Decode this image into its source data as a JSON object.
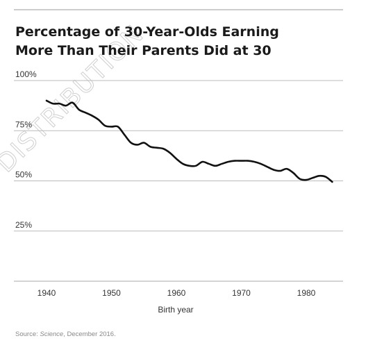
{
  "chart_data": {
    "type": "line",
    "title": "Percentage of 30-Year-Olds Earning More Than Their Parents Did at 30",
    "title_lines": [
      "Percentage of 30-Year-Olds Earning",
      "More Than Their Parents Did at 30"
    ],
    "xlabel": "Birth year",
    "ylabel": "",
    "x_ticks": [
      1940,
      1950,
      1960,
      1970,
      1980
    ],
    "y_ticks": [
      100,
      75,
      50,
      25
    ],
    "y_tick_labels": [
      "100%",
      "75%",
      "50%",
      "25%"
    ],
    "xlim": [
      1940,
      1985
    ],
    "ylim": [
      0,
      100
    ],
    "grid": "horizontal",
    "series": [
      {
        "x": [
          1940,
          1941,
          1942,
          1943,
          1944,
          1945,
          1946,
          1947,
          1948,
          1949,
          1950,
          1951,
          1952,
          1953,
          1954,
          1955,
          1956,
          1957,
          1958,
          1959,
          1960,
          1961,
          1962,
          1963,
          1964,
          1965,
          1966,
          1967,
          1968,
          1969,
          1970,
          1971,
          1972,
          1973,
          1974,
          1975,
          1976,
          1977,
          1978,
          1979,
          1980,
          1981,
          1982,
          1983,
          1984
        ],
        "y": [
          90,
          88.5,
          88.5,
          87.5,
          89,
          85.5,
          84,
          82.5,
          80.5,
          77.5,
          77,
          77,
          73,
          69,
          68,
          69,
          67,
          66.5,
          66,
          64,
          61,
          58.5,
          57.5,
          57.5,
          59.5,
          58.5,
          57.5,
          58.5,
          59.5,
          60,
          60,
          60,
          59.5,
          58.5,
          57,
          55.5,
          55,
          56,
          54,
          51,
          50.5,
          51.5,
          52.5,
          52,
          49.5
        ]
      }
    ]
  },
  "source_prefix": "Source: ",
  "source_work": "Science",
  "source_suffix": ", December 2016.",
  "watermark": "DISTRIBUTION",
  "colors": {
    "line": "#111111",
    "grid": "#bbbbbb",
    "top_rule": "#999999",
    "text": "#1a1a1a",
    "muted": "#888888"
  }
}
